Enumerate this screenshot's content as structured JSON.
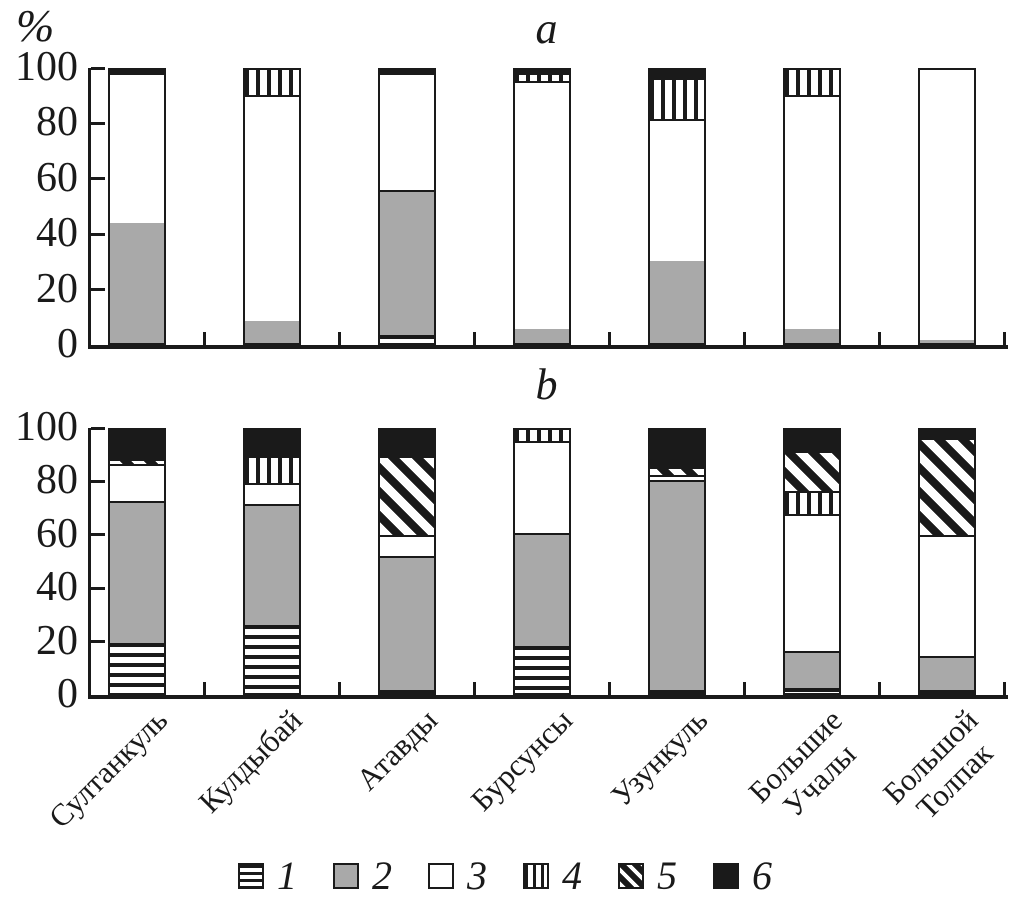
{
  "axes": {
    "unit_label": "%",
    "y_ticks": [
      100,
      80,
      60,
      40,
      20,
      0
    ],
    "ylim": [
      0,
      100
    ],
    "grid": false
  },
  "colors": {
    "black": "#1a1a1a",
    "gray": "#a9a9a9",
    "white": "#ffffff"
  },
  "legend": {
    "position": "bottom-center",
    "items": [
      {
        "label": "1",
        "pattern": "hlines"
      },
      {
        "label": "2",
        "pattern": "gray"
      },
      {
        "label": "3",
        "pattern": "white"
      },
      {
        "label": "4",
        "pattern": "vlines"
      },
      {
        "label": "5",
        "pattern": "diag"
      },
      {
        "label": "6",
        "pattern": "black"
      }
    ]
  },
  "chart_data": [
    {
      "panel": "a",
      "title": "a",
      "type": "bar",
      "stacked": true,
      "unit": "%",
      "ylim": [
        0,
        100
      ],
      "categories": [
        "Султанкуль",
        "Кулдыбай",
        "Атавды",
        "Бурсунсы",
        "Узункуль",
        "Большие Учалы",
        "Большой Толпак"
      ],
      "series": [
        {
          "name": "1",
          "pattern": "hlines",
          "values": [
            0,
            0,
            3,
            0,
            0,
            0,
            0
          ]
        },
        {
          "name": "2",
          "pattern": "gray",
          "values": [
            44,
            8,
            53,
            5,
            30,
            5,
            1
          ]
        },
        {
          "name": "3",
          "pattern": "white",
          "values": [
            55,
            83,
            43,
            91,
            52,
            86,
            99
          ]
        },
        {
          "name": "4",
          "pattern": "vlines",
          "values": [
            0,
            9,
            0,
            3,
            15,
            9,
            0
          ]
        },
        {
          "name": "5",
          "pattern": "diag",
          "values": [
            0,
            0,
            0,
            0,
            0,
            0,
            0
          ]
        },
        {
          "name": "6",
          "pattern": "black",
          "values": [
            1,
            0,
            1,
            1,
            3,
            0,
            0
          ]
        }
      ]
    },
    {
      "panel": "b",
      "title": "b",
      "type": "bar",
      "stacked": true,
      "unit": "%",
      "ylim": [
        0,
        100
      ],
      "categories": [
        "Султанкуль",
        "Кулдыбай",
        "Атавды",
        "Бурсунсы",
        "Узункуль",
        "Большие Учалы",
        "Большой Толпак"
      ],
      "series": [
        {
          "name": "1",
          "pattern": "hlines",
          "values": [
            19,
            26,
            1,
            18,
            1,
            2,
            1
          ]
        },
        {
          "name": "2",
          "pattern": "gray",
          "values": [
            54,
            46,
            51,
            43,
            80,
            14,
            13
          ]
        },
        {
          "name": "3",
          "pattern": "white",
          "values": [
            14,
            8,
            8,
            35,
            2,
            52,
            46
          ]
        },
        {
          "name": "4",
          "pattern": "vlines",
          "values": [
            0,
            10,
            0,
            4,
            0,
            9,
            0
          ]
        },
        {
          "name": "5",
          "pattern": "diag",
          "values": [
            2,
            0,
            30,
            0,
            3,
            15,
            37
          ]
        },
        {
          "name": "6",
          "pattern": "black",
          "values": [
            11,
            10,
            10,
            0,
            14,
            8,
            3
          ]
        }
      ]
    }
  ]
}
